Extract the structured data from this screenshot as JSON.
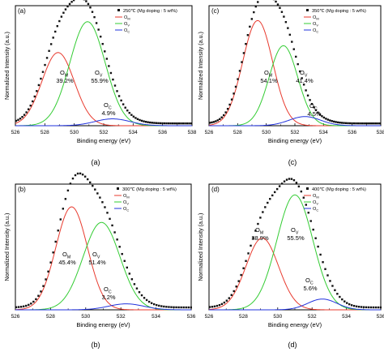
{
  "chart_data": [
    {
      "type": "line",
      "panel_label": "(a)",
      "caption": "(a)",
      "legend_title": "250℃ (Mg doping : 5 wt%)",
      "xlabel": "Binding energy (eV)",
      "ylabel": "Normalized Intensity (a.u.)",
      "xlim": [
        526,
        538
      ],
      "ylim": [
        0,
        1.05
      ],
      "xticks": [
        526,
        528,
        530,
        532,
        534,
        536,
        538
      ],
      "legend_position": "top-right",
      "raw_data_shown": true,
      "series": [
        {
          "name": "O_M",
          "color": "#e83a2e",
          "center": 528.9,
          "height": 0.64,
          "width": 1.1
        },
        {
          "name": "O_V",
          "color": "#33cc33",
          "center": 530.9,
          "height": 0.91,
          "width": 1.2
        },
        {
          "name": "O_C",
          "color": "#2233dd",
          "center": 532.6,
          "height": 0.06,
          "width": 1.2
        }
      ],
      "annotations": [
        {
          "label": "O_M",
          "percent": "39.2%"
        },
        {
          "label": "O_V",
          "percent": "55.9%"
        },
        {
          "label": "O_C",
          "percent": "4.9%"
        }
      ]
    },
    {
      "type": "line",
      "panel_label": "(c)",
      "caption": "(c)",
      "legend_title": "350℃ (Mg doping : 5 wt%)",
      "xlabel": "Binding energy (eV)",
      "ylabel": "Normalized Intensity (a.u.)",
      "xlim": [
        526,
        538
      ],
      "ylim": [
        0,
        1.05
      ],
      "xticks": [
        526,
        528,
        530,
        532,
        534,
        536,
        538
      ],
      "legend_position": "top-right",
      "raw_data_shown": true,
      "series": [
        {
          "name": "O_M",
          "color": "#e83a2e",
          "center": 529.4,
          "height": 0.92,
          "width": 1.05
        },
        {
          "name": "O_V",
          "color": "#33cc33",
          "center": 531.2,
          "height": 0.7,
          "width": 1.0
        },
        {
          "name": "O_C",
          "color": "#2233dd",
          "center": 532.7,
          "height": 0.08,
          "width": 1.1
        }
      ],
      "annotations": [
        {
          "label": "O_M",
          "percent": "54.1%"
        },
        {
          "label": "O_V",
          "percent": "41.4%"
        },
        {
          "label": "O_C",
          "percent": "4.5%"
        }
      ]
    },
    {
      "type": "line",
      "panel_label": "(b)",
      "caption": "(b)",
      "legend_title": "300℃ (Mg doping : 5 wt%)",
      "xlabel": "Binding energy (eV)",
      "ylabel": "Normalized Intensity (a.u.)",
      "xlim": [
        526,
        536
      ],
      "ylim": [
        0,
        1.05
      ],
      "xticks": [
        526,
        528,
        530,
        532,
        534,
        536
      ],
      "legend_position": "top-right",
      "raw_data_shown": true,
      "series": [
        {
          "name": "O_M",
          "color": "#e83a2e",
          "center": 529.2,
          "height": 0.86,
          "width": 0.9
        },
        {
          "name": "O_V",
          "color": "#33cc33",
          "center": 530.9,
          "height": 0.73,
          "width": 1.05
        },
        {
          "name": "O_C",
          "color": "#2233dd",
          "center": 532.3,
          "height": 0.05,
          "width": 1.0
        }
      ],
      "annotations": [
        {
          "label": "O_M",
          "percent": "45.4%"
        },
        {
          "label": "O_V",
          "percent": "51.4%"
        },
        {
          "label": "O_C",
          "percent": "3.2%"
        }
      ]
    },
    {
      "type": "line",
      "panel_label": "(d)",
      "caption": "(d)",
      "legend_title": "400℃ (Mg doping : 5 wt%)",
      "xlabel": "Binding energy (eV)",
      "ylabel": "Normalized Intensity (a.u.)",
      "xlim": [
        526,
        536
      ],
      "ylim": [
        0,
        1.05
      ],
      "xticks": [
        526,
        528,
        530,
        532,
        534,
        536
      ],
      "legend_position": "top-right",
      "raw_data_shown": true,
      "series": [
        {
          "name": "O_M",
          "color": "#e83a2e",
          "center": 529.1,
          "height": 0.6,
          "width": 0.95
        },
        {
          "name": "O_V",
          "color": "#33cc33",
          "center": 531.0,
          "height": 0.96,
          "width": 1.05
        },
        {
          "name": "O_C",
          "color": "#2233dd",
          "center": 532.6,
          "height": 0.09,
          "width": 0.85
        }
      ],
      "annotations": [
        {
          "label": "O_M",
          "percent": "38.9%"
        },
        {
          "label": "O_V",
          "percent": "55.5%"
        },
        {
          "label": "O_C",
          "percent": "5.6%"
        }
      ]
    }
  ]
}
